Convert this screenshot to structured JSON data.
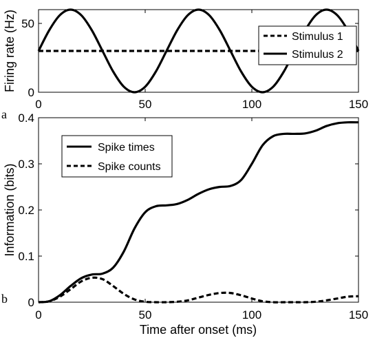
{
  "chart_data": [
    {
      "type": "line",
      "panel_label": "a",
      "title": "",
      "xlabel": "",
      "ylabel": "Firing rate (Hz)",
      "xlim": [
        0,
        150
      ],
      "ylim": [
        0,
        60
      ],
      "xticks": [
        "0",
        "50",
        "100",
        "150"
      ],
      "yticks": [
        "0",
        "50"
      ],
      "grid": false,
      "legend": "top-right",
      "series": [
        {
          "name": "Stimulus 1",
          "style": "dashed",
          "x": [
            0,
            150
          ],
          "y": [
            30,
            30
          ]
        },
        {
          "name": "Stimulus 2",
          "style": "solid",
          "x": [
            0,
            5,
            10,
            15,
            20,
            25,
            30,
            35,
            40,
            45,
            50,
            55,
            60,
            65,
            70,
            75,
            80,
            85,
            90,
            95,
            100,
            105,
            110,
            115,
            120,
            125,
            130,
            135,
            140,
            145,
            150
          ],
          "y": [
            30,
            45,
            56,
            60,
            56,
            45,
            30,
            15,
            4,
            0,
            4,
            15,
            30,
            45,
            56,
            60,
            56,
            45,
            30,
            15,
            4,
            0,
            4,
            15,
            30,
            45,
            56,
            60,
            56,
            45,
            30
          ]
        }
      ]
    },
    {
      "type": "line",
      "panel_label": "b",
      "title": "",
      "xlabel": "Time after onset (ms)",
      "ylabel": "Information (bits)",
      "xlim": [
        0,
        150
      ],
      "ylim": [
        0,
        0.4
      ],
      "xticks": [
        "0",
        "50",
        "100",
        "150"
      ],
      "yticks": [
        "0",
        "0.1",
        "0.2",
        "0.3",
        "0.4"
      ],
      "grid": false,
      "legend": "top-left",
      "series": [
        {
          "name": "Spike times",
          "style": "solid",
          "x": [
            0,
            5,
            10,
            15,
            20,
            25,
            30,
            35,
            40,
            45,
            50,
            55,
            60,
            65,
            70,
            75,
            80,
            85,
            90,
            95,
            100,
            105,
            110,
            115,
            120,
            125,
            130,
            135,
            140,
            145,
            150
          ],
          "y": [
            0,
            0.002,
            0.015,
            0.035,
            0.052,
            0.06,
            0.062,
            0.075,
            0.11,
            0.16,
            0.195,
            0.208,
            0.21,
            0.213,
            0.222,
            0.235,
            0.245,
            0.25,
            0.252,
            0.265,
            0.3,
            0.34,
            0.36,
            0.365,
            0.365,
            0.366,
            0.372,
            0.382,
            0.388,
            0.39,
            0.39
          ]
        },
        {
          "name": "Spike counts",
          "style": "dashed",
          "x": [
            0,
            5,
            10,
            15,
            20,
            25,
            30,
            35,
            40,
            45,
            50,
            55,
            60,
            65,
            70,
            75,
            80,
            85,
            90,
            95,
            100,
            105,
            110,
            115,
            120,
            125,
            130,
            135,
            140,
            145,
            150
          ],
          "y": [
            0,
            0.002,
            0.012,
            0.028,
            0.045,
            0.053,
            0.05,
            0.035,
            0.018,
            0.006,
            0.001,
            0,
            0,
            0.001,
            0.004,
            0.01,
            0.016,
            0.02,
            0.02,
            0.015,
            0.008,
            0.002,
            0,
            0,
            0,
            0,
            0.001,
            0.004,
            0.008,
            0.012,
            0.013
          ]
        }
      ]
    }
  ]
}
